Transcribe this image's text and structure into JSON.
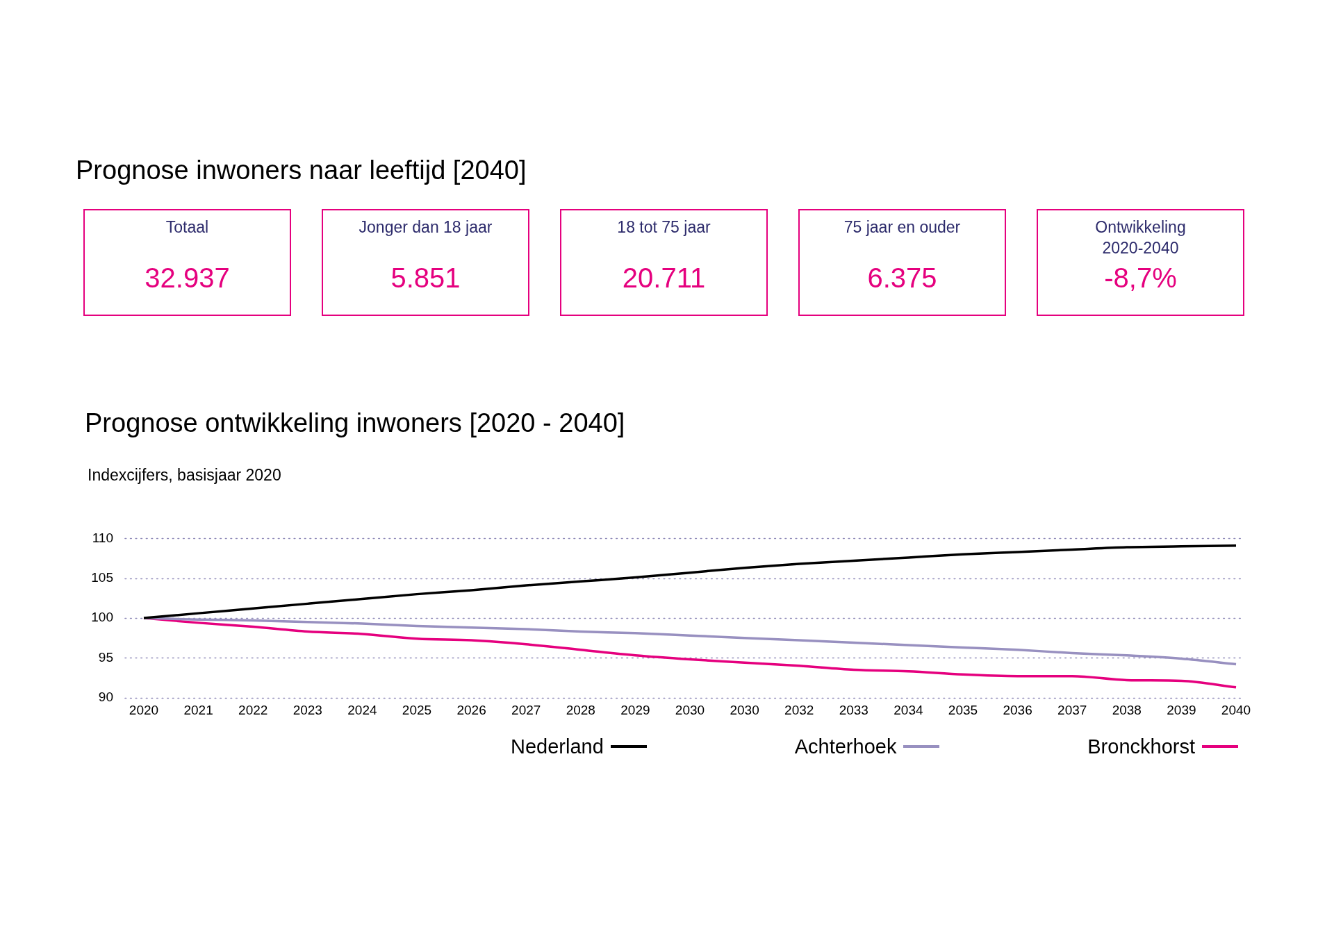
{
  "chart_data": [
    {
      "type": "other",
      "title": "Prognose inwoners naar leeftijd [2040]",
      "categories": [
        "Totaal",
        "Jonger dan 18 jaar",
        "18 tot 75 jaar",
        "75 jaar en ouder",
        "Ontwikkeling 2020-2040"
      ],
      "value_labels": [
        "32.937",
        "5.851",
        "20.711",
        "6.375",
        "-8,7%"
      ]
    },
    {
      "type": "line",
      "title": "Prognose ontwikkeling inwoners [2020 - 2040]",
      "ylabel": "Indexcijfers, basisjaar 2020",
      "categories": [
        "2020",
        "2021",
        "2022",
        "2023",
        "2024",
        "2025",
        "2026",
        "2027",
        "2028",
        "2029",
        "2030",
        "2030",
        "2032",
        "2033",
        "2034",
        "2035",
        "2036",
        "2037",
        "2038",
        "2039",
        "2040"
      ],
      "ylim": [
        90,
        110
      ],
      "yticks": [
        90,
        95,
        100,
        105,
        110
      ],
      "grid": "y",
      "legend": "bottom",
      "marker": "none",
      "line_style": "solid",
      "series": [
        {
          "name": "Nederland",
          "color": "#000000",
          "values": [
            100,
            100.6,
            101.2,
            101.8,
            102.4,
            103.0,
            103.5,
            104.1,
            104.6,
            105.1,
            105.7,
            106.3,
            106.8,
            107.2,
            107.6,
            108.0,
            108.3,
            108.6,
            108.9,
            109.0,
            109.1
          ]
        },
        {
          "name": "Achterhoek",
          "color": "#9890c0",
          "values": [
            100,
            99.8,
            99.7,
            99.5,
            99.3,
            99.0,
            98.8,
            98.6,
            98.3,
            98.1,
            97.8,
            97.5,
            97.2,
            96.9,
            96.6,
            96.3,
            96.0,
            95.6,
            95.3,
            94.9,
            94.2
          ]
        },
        {
          "name": "Bronckhorst",
          "color": "#e5007e",
          "values": [
            100,
            99.4,
            98.9,
            98.3,
            98.0,
            97.4,
            97.2,
            96.7,
            96.0,
            95.3,
            94.8,
            94.4,
            94.0,
            93.5,
            93.3,
            92.9,
            92.7,
            92.7,
            92.2,
            92.1,
            91.3
          ]
        }
      ]
    }
  ]
}
